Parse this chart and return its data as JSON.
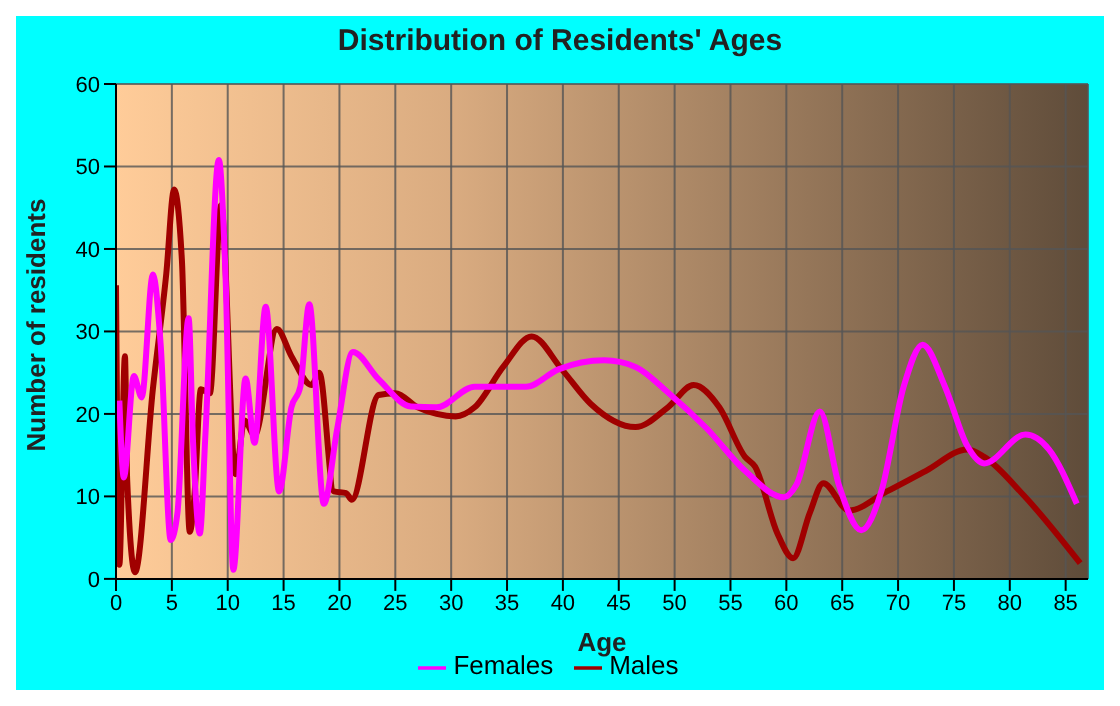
{
  "chart_data": {
    "type": "line",
    "title": "Distribution of Residents' Ages",
    "xlabel": "Age",
    "ylabel": "Number of residents",
    "xlim": [
      0,
      87
    ],
    "xticks": [
      0,
      5,
      10,
      15,
      20,
      25,
      30,
      35,
      40,
      45,
      50,
      55,
      60,
      65,
      70,
      75,
      80,
      85
    ],
    "ylim": [
      0,
      60
    ],
    "yticks": [
      0,
      10,
      20,
      30,
      40,
      50,
      60
    ],
    "grid": true,
    "legend": "bottom",
    "marker": "none",
    "line_style": "solid",
    "series": [
      {
        "name": "Males",
        "color": "#a00000",
        "x": [
          0,
          0.3,
          0.8,
          1,
          1.7,
          3.3,
          4.5,
          5.2,
          5.9,
          6.6,
          7,
          7.6,
          8.4,
          9.4,
          10.7,
          11.5,
          12.4,
          14.4,
          15.7,
          17.5,
          18.2,
          19.5,
          20.6,
          21.1,
          23.5,
          25,
          27,
          28.7,
          30.4,
          32.1,
          34.7,
          37.2,
          39.9,
          42.5,
          46.5,
          49.4,
          51.7,
          54,
          56.3,
          57.2,
          59.2,
          60.6,
          62.1,
          63.3,
          65.6,
          69,
          72.5,
          76.2,
          77.7,
          81.2,
          86.3
        ],
        "values": [
          35.6,
          1.7,
          27,
          12,
          0.8,
          23,
          37,
          47.2,
          38.6,
          5.7,
          9.7,
          23,
          22.5,
          45.3,
          12.7,
          19.2,
          17.4,
          30.3,
          27,
          23.5,
          25,
          10.6,
          10.4,
          9.6,
          22.3,
          22.5,
          20.8,
          20,
          19.7,
          20.8,
          25.8,
          29.4,
          25.4,
          21.2,
          18.4,
          20.8,
          23.5,
          20.8,
          14.8,
          13.6,
          5.5,
          2.5,
          8,
          11.6,
          8.3,
          10.6,
          13.1,
          15.7,
          14.8,
          10.2,
          1.9
        ]
      },
      {
        "name": "Females",
        "color": "#ff00ff",
        "x": [
          0.3,
          0.7,
          1.6,
          2.3,
          3.3,
          4,
          4.9,
          5.5,
          6.5,
          6.9,
          7.5,
          8,
          9.2,
          9.8,
          10.5,
          11.6,
          12.4,
          13.4,
          14.6,
          15.7,
          16.5,
          17.3,
          18.6,
          19.8,
          21.2,
          23.5,
          26.4,
          28.7,
          32.1,
          36.7,
          39.6,
          43.7,
          46.5,
          49.4,
          52.9,
          56.3,
          59.8,
          60.9,
          63,
          64.7,
          66.7,
          68.5,
          70.5,
          72.2,
          74.2,
          76.2,
          77.7,
          81.4,
          83.5,
          86
        ],
        "values": [
          21.6,
          12.3,
          24.6,
          22,
          36.9,
          28.4,
          4.7,
          8,
          31.6,
          16.5,
          5.5,
          17.4,
          50.8,
          36.9,
          1.1,
          24.3,
          16.5,
          33,
          10.6,
          20.8,
          23.3,
          33.3,
          9.1,
          18.2,
          27.5,
          24.2,
          20.9,
          20.8,
          23.3,
          23.3,
          25.4,
          26.5,
          25.7,
          22.6,
          18.2,
          13.1,
          9.9,
          11.4,
          20.3,
          11.4,
          5.9,
          10.6,
          23.3,
          28.4,
          23.3,
          16.1,
          14,
          17.5,
          15.7,
          9.1
        ]
      }
    ]
  }
}
